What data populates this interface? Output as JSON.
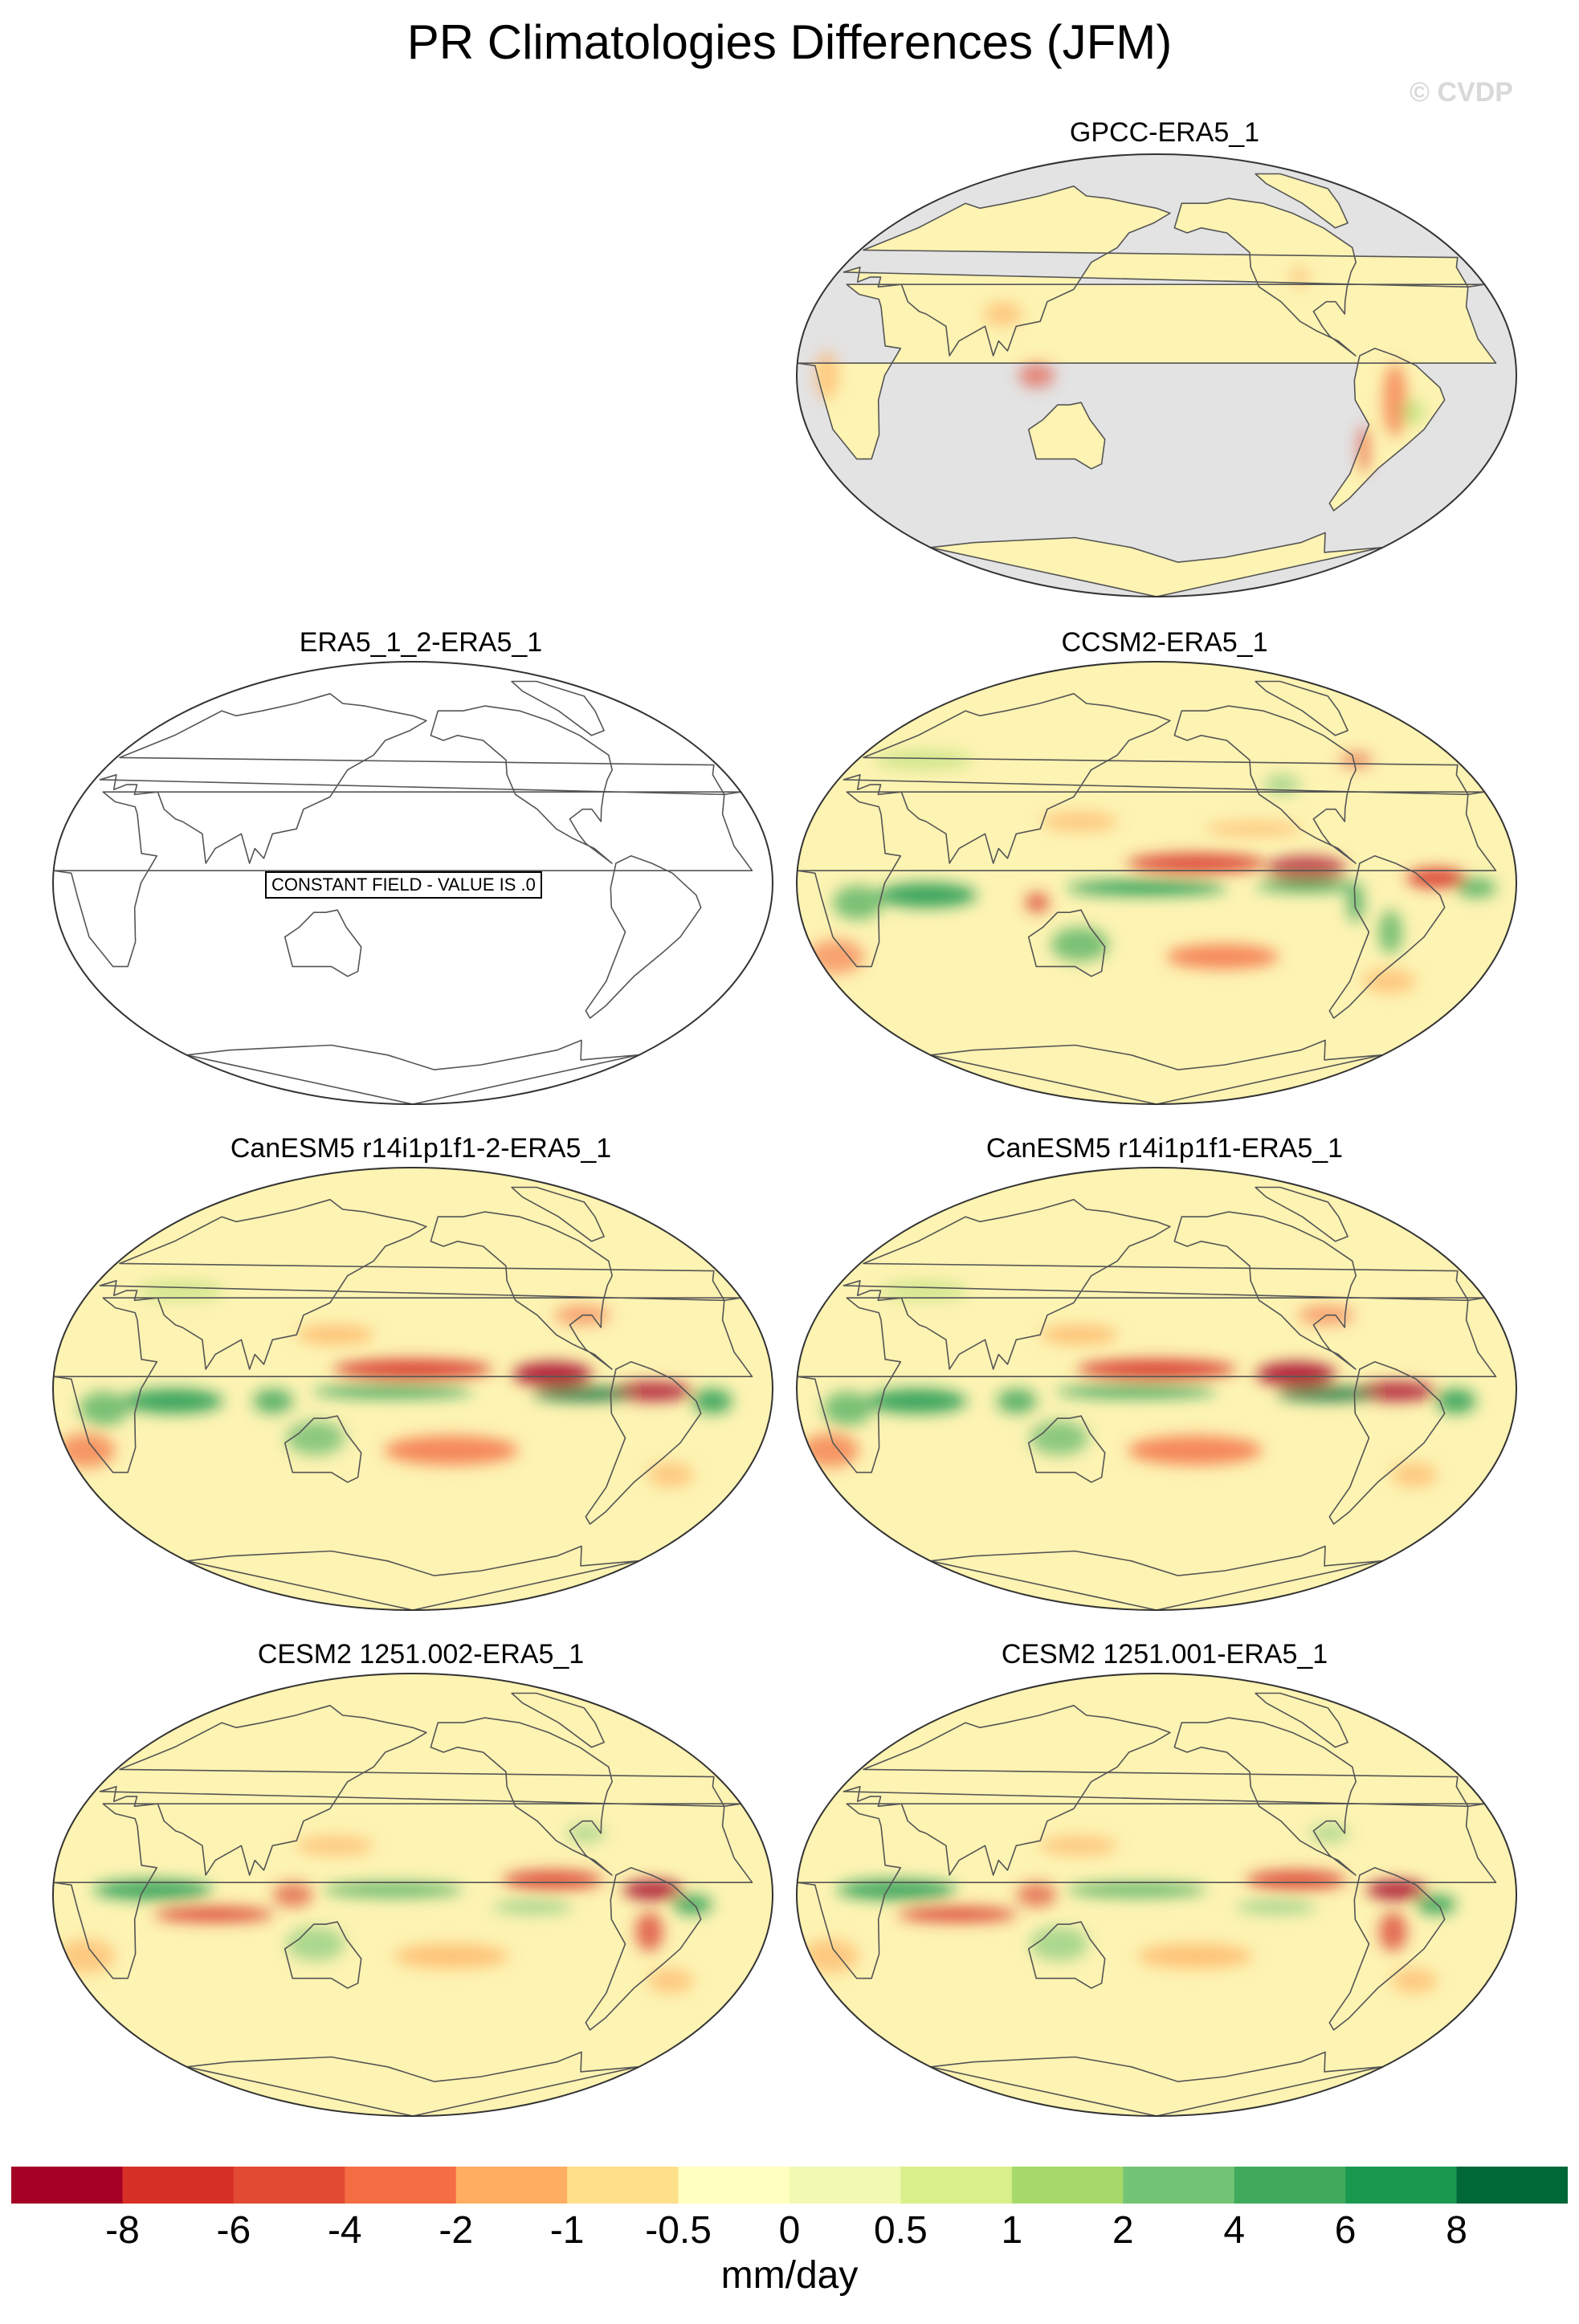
{
  "title": "PR Climatologies Differences (JFM)",
  "watermark": "© CVDP",
  "panels": {
    "gpcc": {
      "title": "GPCC-ERA5_1"
    },
    "era5_2": {
      "title": "ERA5_1_2-ERA5_1",
      "note": "CONSTANT FIELD - VALUE IS .0"
    },
    "ccsm2": {
      "title": "CCSM2-ERA5_1"
    },
    "canesm5_2": {
      "title": "CanESM5 r14i1p1f1-2-ERA5_1"
    },
    "canesm5": {
      "title": "CanESM5 r14i1p1f1-ERA5_1"
    },
    "cesm2_002": {
      "title": "CESM2 1251.002-ERA5_1"
    },
    "cesm2_001": {
      "title": "CESM2 1251.001-ERA5_1"
    }
  },
  "colorbar": {
    "units": "mm/day",
    "labels": [
      "-8",
      "-6",
      "-4",
      "-2",
      "-1",
      "-0.5",
      "0",
      "0.5",
      "1",
      "2",
      "4",
      "6",
      "8"
    ],
    "colors": [
      "#a50026",
      "#d73027",
      "#e34a33",
      "#f46d43",
      "#fdae61",
      "#fee08b",
      "#ffffbf",
      "#f1f9b2",
      "#d9ef8b",
      "#a6d96a",
      "#74c476",
      "#41ab5d",
      "#1a9850",
      "#006837"
    ]
  },
  "colors": {
    "land_mask": "#e3e3e3",
    "coastline": "#555555",
    "near_zero": "#fdf3b2"
  }
}
